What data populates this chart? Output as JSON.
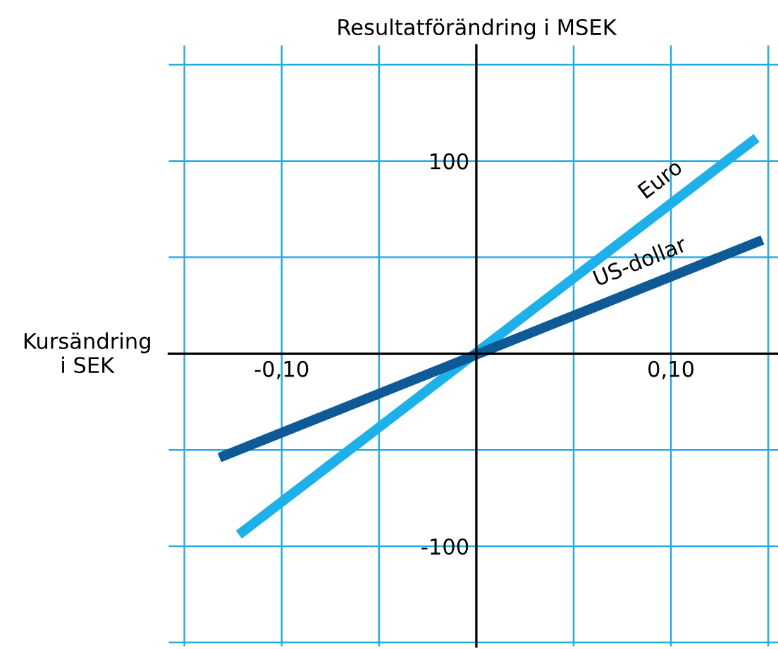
{
  "chart_data": {
    "type": "line",
    "xlabel": "Kursändring\ni SEK",
    "ylabel": "Resultatförändring i MSEK",
    "series": [
      {
        "name": "Euro",
        "color": "#1eb0e8",
        "x": [
          -0.122,
          0.144
        ],
        "values": [
          -94,
          112
        ]
      },
      {
        "name": "US-dollar",
        "color": "#0d5a96",
        "x": [
          -0.132,
          0.147
        ],
        "values": [
          -54,
          59
        ]
      }
    ],
    "xlim": [
      -0.158,
      0.155
    ],
    "ylim": [
      -152,
      160
    ],
    "xticks": [
      {
        "value": -0.15,
        "label": null
      },
      {
        "value": -0.1,
        "label": "-0,10"
      },
      {
        "value": -0.05,
        "label": null
      },
      {
        "value": 0.05,
        "label": null
      },
      {
        "value": 0.1,
        "label": "0,10"
      },
      {
        "value": 0.15,
        "label": null
      }
    ],
    "yticks": [
      {
        "value": -150,
        "label": null
      },
      {
        "value": -100,
        "label": "-100"
      },
      {
        "value": -50,
        "label": null
      },
      {
        "value": 50,
        "label": null
      },
      {
        "value": 100,
        "label": "100"
      },
      {
        "value": 150,
        "label": null
      }
    ],
    "grid": true,
    "legend": false,
    "marker": "none",
    "line_style": "solid"
  }
}
